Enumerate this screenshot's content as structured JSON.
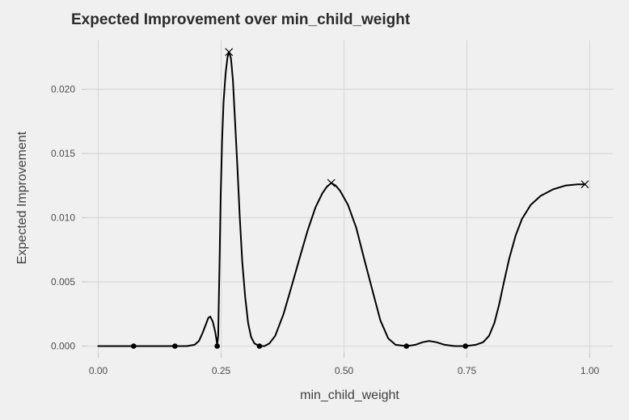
{
  "window": {
    "background": "#F0F0F0"
  },
  "chart_data": {
    "type": "line",
    "title": "Expected Improvement over min_child_weight",
    "xlabel": "min_child_weight",
    "ylabel": "Expected Improvement",
    "xlim": [
      -0.024,
      1.047
    ],
    "ylim": [
      -0.0005,
      0.0238
    ],
    "grid": "major-only",
    "legend": "none",
    "x_ticks": {
      "values": [
        0,
        0.25,
        0.5,
        0.75,
        1.0
      ],
      "labels": [
        "0.00",
        "0.25",
        "0.50",
        "0.75",
        "1.00"
      ]
    },
    "y_ticks": {
      "values": [
        0,
        0.005,
        0.01,
        0.015,
        0.02
      ],
      "labels": [
        "0.000",
        "0.005",
        "0.010",
        "0.015",
        "0.020"
      ]
    },
    "styles": {
      "line_color": "#000000",
      "point_color": "#000000",
      "marker_color": "#000000",
      "grid_color": "#D8D8D8",
      "tick_color": "#C9C9C9",
      "panel_bg": "#F0F0F0",
      "tick_text_color": "#4D4D4D",
      "title_color": "#2B2B2B"
    },
    "series": [
      {
        "name": "expected-improvement-curve",
        "type": "line",
        "points": [
          [
            0.0,
            0.0
          ],
          [
            0.03,
            0.0
          ],
          [
            0.06,
            0.0
          ],
          [
            0.072,
            0.0
          ],
          [
            0.1,
            0.0
          ],
          [
            0.13,
            0.0
          ],
          [
            0.156,
            0.0
          ],
          [
            0.18,
            0.0
          ],
          [
            0.196,
            0.0001
          ],
          [
            0.205,
            0.0004
          ],
          [
            0.212,
            0.001
          ],
          [
            0.219,
            0.0017
          ],
          [
            0.224,
            0.0022
          ],
          [
            0.228,
            0.0023
          ],
          [
            0.233,
            0.0019
          ],
          [
            0.238,
            0.0011
          ],
          [
            0.241,
            0.0004
          ],
          [
            0.242,
            0.0001
          ],
          [
            0.244,
            0.0008
          ],
          [
            0.245,
            0.003
          ],
          [
            0.247,
            0.007
          ],
          [
            0.249,
            0.0115
          ],
          [
            0.252,
            0.016
          ],
          [
            0.255,
            0.019
          ],
          [
            0.259,
            0.0212
          ],
          [
            0.263,
            0.0225
          ],
          [
            0.266,
            0.0229
          ],
          [
            0.27,
            0.0224
          ],
          [
            0.274,
            0.0207
          ],
          [
            0.278,
            0.0178
          ],
          [
            0.283,
            0.014
          ],
          [
            0.288,
            0.01
          ],
          [
            0.293,
            0.0066
          ],
          [
            0.299,
            0.0038
          ],
          [
            0.305,
            0.0018
          ],
          [
            0.311,
            0.0007
          ],
          [
            0.318,
            0.0002
          ],
          [
            0.328,
            0.0
          ],
          [
            0.338,
            0.0
          ],
          [
            0.348,
            0.0002
          ],
          [
            0.36,
            0.0008
          ],
          [
            0.377,
            0.0025
          ],
          [
            0.393,
            0.0046
          ],
          [
            0.41,
            0.0069
          ],
          [
            0.426,
            0.009
          ],
          [
            0.442,
            0.0108
          ],
          [
            0.456,
            0.0119
          ],
          [
            0.465,
            0.0124
          ],
          [
            0.474,
            0.0127
          ],
          [
            0.483,
            0.0125
          ],
          [
            0.492,
            0.0121
          ],
          [
            0.508,
            0.011
          ],
          [
            0.525,
            0.0092
          ],
          [
            0.541,
            0.0068
          ],
          [
            0.558,
            0.0043
          ],
          [
            0.574,
            0.002
          ],
          [
            0.59,
            0.0006
          ],
          [
            0.605,
            0.0001
          ],
          [
            0.627,
            0.0
          ],
          [
            0.645,
            0.0001
          ],
          [
            0.66,
            0.0003
          ],
          [
            0.673,
            0.0004
          ],
          [
            0.688,
            0.0003
          ],
          [
            0.705,
            0.0001
          ],
          [
            0.725,
            0.0
          ],
          [
            0.747,
            0.0
          ],
          [
            0.768,
            0.0001
          ],
          [
            0.783,
            0.0003
          ],
          [
            0.795,
            0.0008
          ],
          [
            0.806,
            0.0018
          ],
          [
            0.816,
            0.0033
          ],
          [
            0.826,
            0.0051
          ],
          [
            0.836,
            0.0068
          ],
          [
            0.849,
            0.0086
          ],
          [
            0.862,
            0.0099
          ],
          [
            0.88,
            0.011
          ],
          [
            0.9,
            0.0117
          ],
          [
            0.925,
            0.0122
          ],
          [
            0.95,
            0.0125
          ],
          [
            0.975,
            0.0126
          ],
          [
            0.99,
            0.0126
          ]
        ]
      }
    ],
    "observed_points": [
      [
        0.072,
        0.0
      ],
      [
        0.156,
        0.0
      ],
      [
        0.242,
        0.0
      ],
      [
        0.328,
        0.0
      ],
      [
        0.627,
        0.0
      ],
      [
        0.747,
        0.0
      ]
    ],
    "peak_markers": [
      [
        0.266,
        0.0229
      ],
      [
        0.474,
        0.0127
      ],
      [
        0.99,
        0.0126
      ]
    ]
  }
}
